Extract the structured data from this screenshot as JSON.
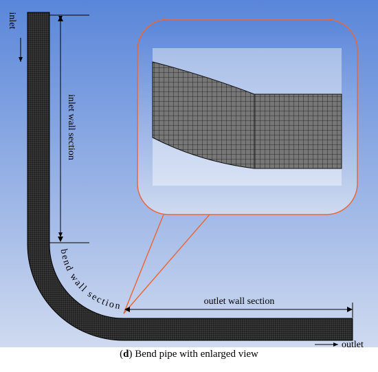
{
  "labels": {
    "inlet": "inlet",
    "inlet_section": "inlet wall section",
    "bend_section": "bend wall section",
    "outlet_section": "outlet wall section",
    "outlet": "outlet"
  },
  "caption": {
    "open": "(",
    "letter": "d",
    "text": ") Bend pipe with enlarged view"
  }
}
